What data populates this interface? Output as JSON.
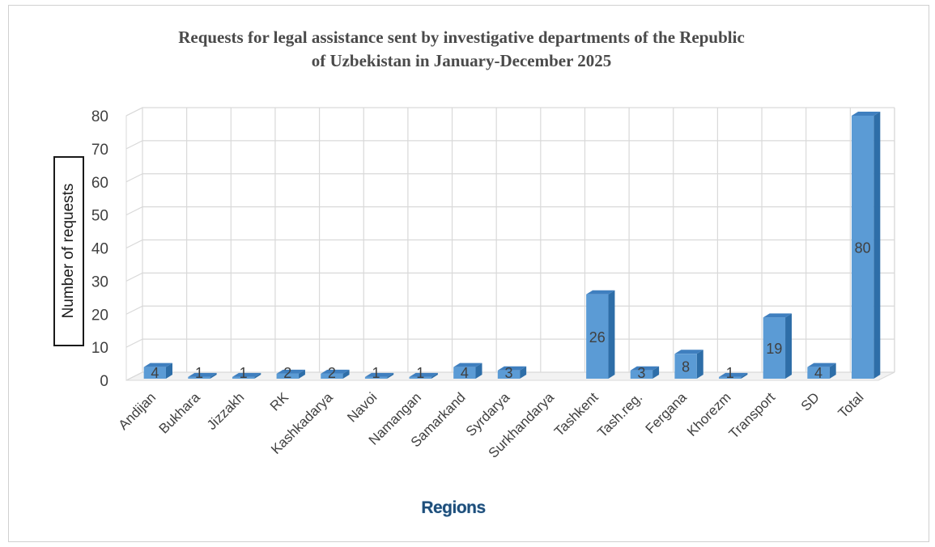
{
  "chart_data": {
    "type": "bar",
    "title": "Requests for legal assistance sent by investigative departments of the Republic of Uzbekistan in January-December 2025",
    "title_lines": [
      "Requests for legal assistance sent by investigative departments of the Republic",
      "of Uzbekistan in January-December 2025"
    ],
    "xlabel": "Regions",
    "ylabel": "Number of requests",
    "ylim": [
      0,
      80
    ],
    "yticks": [
      0,
      10,
      20,
      30,
      40,
      50,
      60,
      70,
      80
    ],
    "grid": true,
    "style": "3d-columns",
    "categories": [
      "Andijan",
      "Bukhara",
      "Jizzakh",
      "RK",
      "Kashkadarya",
      "Navoi",
      "Namangan",
      "Samarkand",
      "Syrdarya",
      "Surkhandarya",
      "Tashkent",
      "Tash.reg.",
      "Fergana",
      "Khorezm",
      "Transport",
      "SD",
      "Total"
    ],
    "values": [
      4,
      1,
      1,
      2,
      2,
      1,
      1,
      4,
      3,
      null,
      26,
      3,
      8,
      1,
      19,
      4,
      80
    ],
    "data_labels": [
      "4",
      "1",
      "1",
      "2",
      "2",
      "1",
      "1",
      "4",
      "3",
      "",
      "26",
      "3",
      "8",
      "1",
      "19",
      "4",
      "80"
    ],
    "colors": {
      "bar_front": "#5b9bd5",
      "bar_side": "#2e6ea8",
      "bar_top": "#3f7fbf",
      "grid": "#d9d9d9",
      "text": "#404040"
    }
  }
}
